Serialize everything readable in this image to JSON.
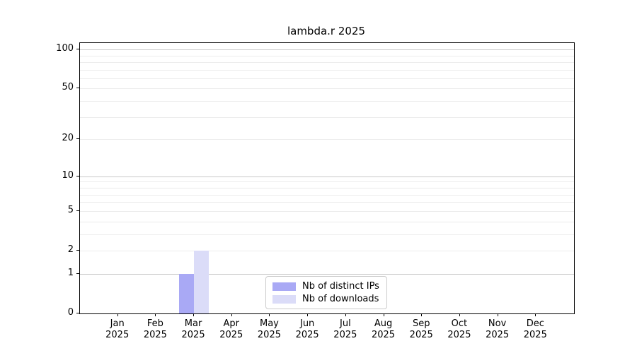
{
  "chart_data": {
    "type": "bar",
    "title": "lambda.r 2025",
    "categories": [
      "Jan",
      "Feb",
      "Mar",
      "Apr",
      "May",
      "Jun",
      "Jul",
      "Aug",
      "Sep",
      "Oct",
      "Nov",
      "Dec"
    ],
    "category_year": "2025",
    "series": [
      {
        "name": "Nb of distinct IPs",
        "color": "#a9a9f5",
        "values": [
          0,
          0,
          1,
          0,
          0,
          0,
          0,
          0,
          0,
          0,
          0,
          0
        ]
      },
      {
        "name": "Nb of downloads",
        "color": "#dbdcf8",
        "values": [
          0,
          0,
          2,
          0,
          0,
          0,
          0,
          0,
          0,
          0,
          0,
          0
        ]
      }
    ],
    "y_scale": "log1p",
    "ylim": [
      0,
      112
    ],
    "y_major_ticks": [
      0,
      1,
      2,
      5,
      10,
      20,
      50,
      100
    ],
    "y_major_gridlines": [
      1,
      10,
      100
    ],
    "y_minor_gridlines": [
      2,
      3,
      4,
      5,
      6,
      7,
      8,
      9,
      20,
      30,
      40,
      50,
      60,
      70,
      80,
      90
    ],
    "grid": "on",
    "legend_position": "lower center",
    "colors": {
      "grid_major": "#c9c9c9",
      "grid_minor": "#ececec",
      "axis": "#000000",
      "background": "#ffffff"
    }
  }
}
